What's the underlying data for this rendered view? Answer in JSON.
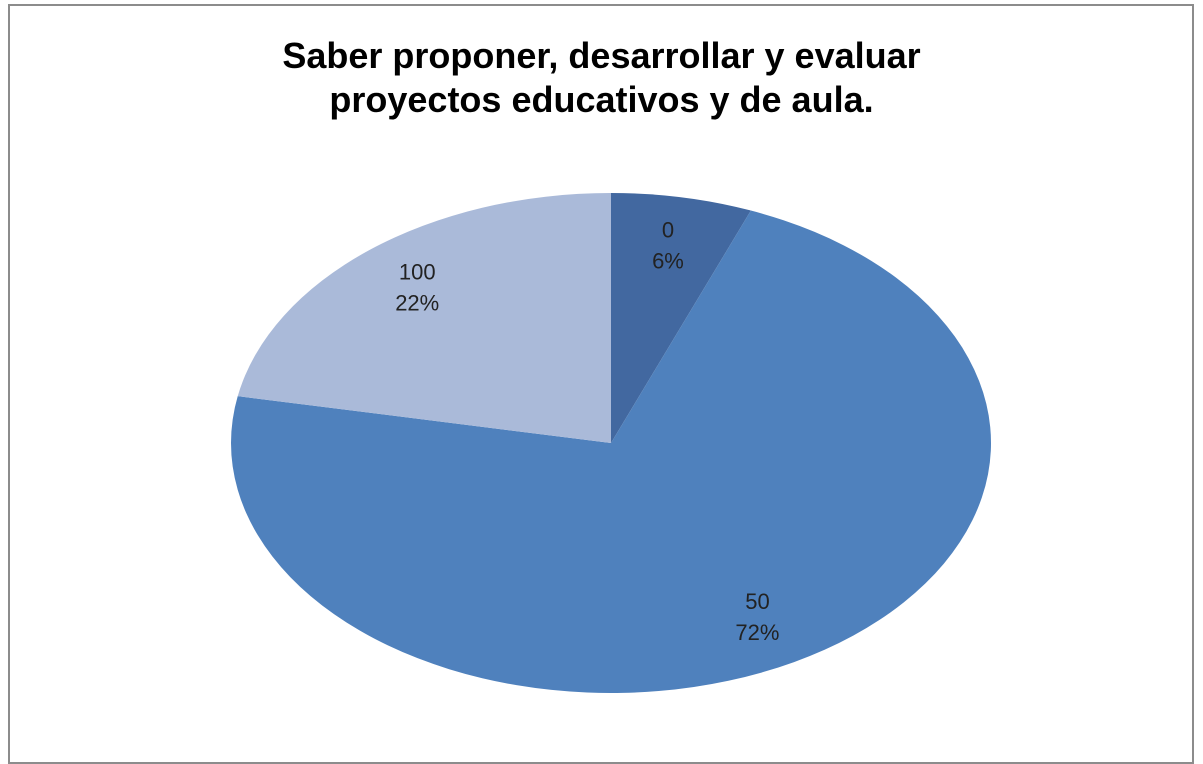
{
  "chart_data": {
    "type": "pie",
    "title": "Saber proponer, desarrollar y evaluar\nproyectos educativos  y de aula.",
    "categories": [
      "0",
      "50",
      "100"
    ],
    "values": [
      6,
      72,
      22
    ],
    "value_labels": [
      "6%",
      "72%",
      "22%"
    ],
    "colors": [
      "#4268a0",
      "#4f81bd",
      "#aabad9"
    ]
  }
}
